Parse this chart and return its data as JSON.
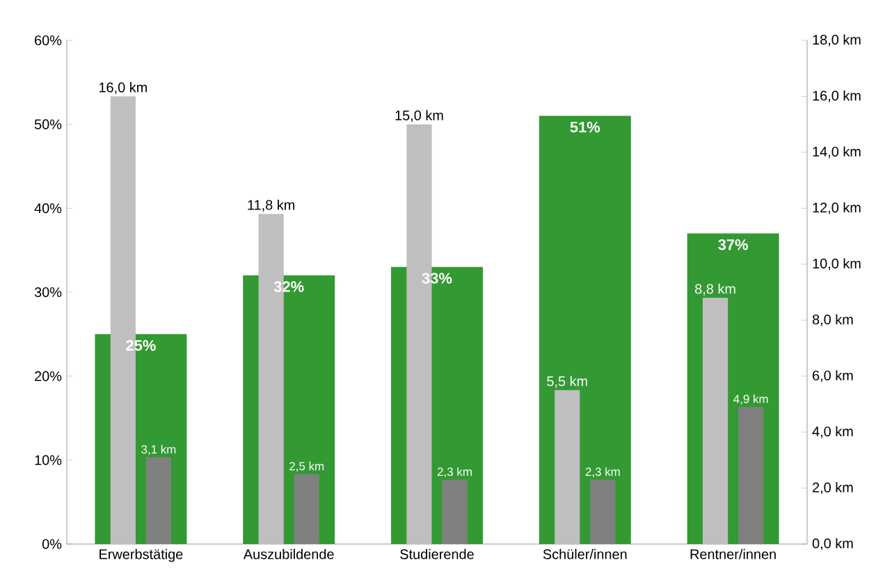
{
  "chart_data": {
    "type": "bar",
    "categories": [
      "Erwerbstätige",
      "Auszubildende",
      "Studierende",
      "Schüler/innen",
      "Rentner/innen"
    ],
    "series": [
      {
        "color": "#339933",
        "values": [
          25,
          32,
          33,
          51,
          37
        ],
        "value_labels": [
          "25%",
          "32%",
          "33%",
          "51%",
          "37%"
        ]
      },
      {
        "color": "#bfbfbf",
        "axis": "y2",
        "values": [
          16.0,
          11.8,
          15.0,
          5.5,
          8.8
        ],
        "value_labels": [
          "16,0 km",
          "11,8 km",
          "15,0 km",
          "5,5 km",
          "8,8 km"
        ]
      },
      {
        "color": "#808080",
        "axis": "y2",
        "values": [
          3.1,
          2.5,
          2.3,
          2.3,
          4.9
        ],
        "value_labels": [
          "3,1 km",
          "2,5 km",
          "2,3 km",
          "2,3 km",
          "4,9 km"
        ]
      }
    ],
    "ylim": [
      0,
      60
    ],
    "yticks": [
      {
        "value": 0,
        "label": "0%"
      },
      {
        "value": 10,
        "label": "10%"
      },
      {
        "value": 20,
        "label": "20%"
      },
      {
        "value": 30,
        "label": "30%"
      },
      {
        "value": 40,
        "label": "40%"
      },
      {
        "value": 50,
        "label": "50%"
      },
      {
        "value": 60,
        "label": "60%"
      }
    ],
    "y2lim": [
      0,
      18
    ],
    "y2ticks": [
      {
        "value": 0,
        "label": "0,0 km"
      },
      {
        "value": 2,
        "label": "2,0 km"
      },
      {
        "value": 4,
        "label": "4,0 km"
      },
      {
        "value": 6,
        "label": "6,0 km"
      },
      {
        "value": 8,
        "label": "8,0 km"
      },
      {
        "value": 10,
        "label": "10,0 km"
      },
      {
        "value": 12,
        "label": "12,0 km"
      },
      {
        "value": 14,
        "label": "14,0 km"
      },
      {
        "value": 16,
        "label": "16,0 km"
      },
      {
        "value": 18,
        "label": "18,0 km"
      }
    ]
  }
}
